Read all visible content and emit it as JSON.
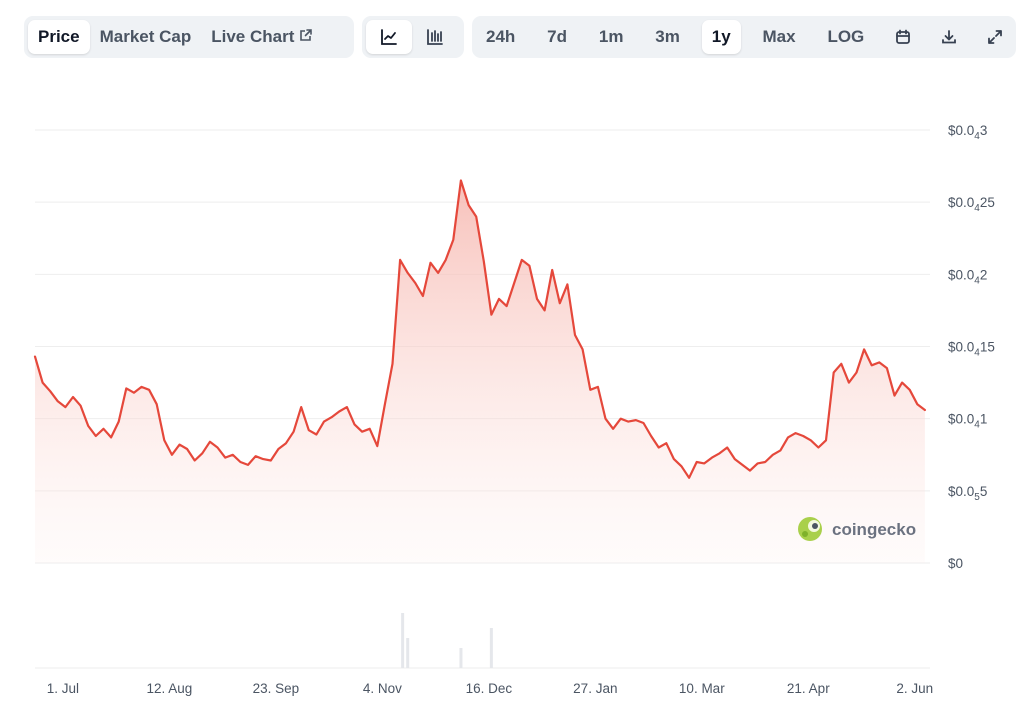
{
  "tabs": [
    {
      "label": "Price",
      "active": true
    },
    {
      "label": "Market Cap",
      "active": false
    },
    {
      "label": "Live Chart",
      "active": false
    }
  ],
  "chart_types": [
    {
      "icon": "line-chart-icon",
      "active": true
    },
    {
      "icon": "candlestick-chart-icon",
      "active": false
    }
  ],
  "ranges": [
    {
      "label": "24h",
      "active": false
    },
    {
      "label": "7d",
      "active": false
    },
    {
      "label": "1m",
      "active": false
    },
    {
      "label": "3m",
      "active": false
    },
    {
      "label": "1y",
      "active": true
    },
    {
      "label": "Max",
      "active": false
    },
    {
      "label": "LOG",
      "active": false
    }
  ],
  "tools": [
    "calendar-icon",
    "download-icon",
    "expand-icon"
  ],
  "watermark": "coingecko",
  "colors": {
    "line": "#e5483b",
    "fill_top": "#f6b6ae",
    "grid": "#eeeeee",
    "accent_bg": "#eff2f5"
  },
  "chart_data": {
    "type": "area",
    "title": "",
    "xlabel": "",
    "ylabel": "",
    "y_ticks": [
      {
        "value": 3e-05,
        "label_main": "$0.0",
        "label_sub": "4",
        "label_tail": "3"
      },
      {
        "value": 2.5e-05,
        "label_main": "$0.0",
        "label_sub": "4",
        "label_tail": "25"
      },
      {
        "value": 2e-05,
        "label_main": "$0.0",
        "label_sub": "4",
        "label_tail": "2"
      },
      {
        "value": 1.5e-05,
        "label_main": "$0.0",
        "label_sub": "4",
        "label_tail": "15"
      },
      {
        "value": 1e-05,
        "label_main": "$0.0",
        "label_sub": "4",
        "label_tail": "1"
      },
      {
        "value": 5e-06,
        "label_main": "$0.0",
        "label_sub": "5",
        "label_tail": "5"
      },
      {
        "value": 0,
        "label_main": "$0",
        "label_sub": "",
        "label_tail": ""
      }
    ],
    "x_ticks": [
      {
        "date": "2024-07-01",
        "label": "1. Jul"
      },
      {
        "date": "2024-08-12",
        "label": "12. Aug"
      },
      {
        "date": "2024-09-23",
        "label": "23. Sep"
      },
      {
        "date": "2024-11-04",
        "label": "4. Nov"
      },
      {
        "date": "2024-12-16",
        "label": "16. Dec"
      },
      {
        "date": "2025-01-27",
        "label": "27. Jan"
      },
      {
        "date": "2025-03-10",
        "label": "10. Mar"
      },
      {
        "date": "2025-04-21",
        "label": "21. Apr"
      },
      {
        "date": "2025-06-02",
        "label": "2. Jun"
      }
    ],
    "ylim": [
      0,
      3e-05
    ],
    "xlim": [
      "2024-06-20",
      "2025-06-08"
    ],
    "grid": true,
    "series": [
      {
        "x": [
          "2024-06-20",
          "2024-06-23",
          "2024-06-26",
          "2024-06-29",
          "2024-07-02",
          "2024-07-05",
          "2024-07-08",
          "2024-07-11",
          "2024-07-14",
          "2024-07-17",
          "2024-07-20",
          "2024-07-23",
          "2024-07-26",
          "2024-07-29",
          "2024-08-01",
          "2024-08-04",
          "2024-08-07",
          "2024-08-10",
          "2024-08-13",
          "2024-08-16",
          "2024-08-19",
          "2024-08-22",
          "2024-08-25",
          "2024-08-28",
          "2024-08-31",
          "2024-09-03",
          "2024-09-06",
          "2024-09-09",
          "2024-09-12",
          "2024-09-15",
          "2024-09-18",
          "2024-09-21",
          "2024-09-24",
          "2024-09-27",
          "2024-09-30",
          "2024-10-03",
          "2024-10-06",
          "2024-10-09",
          "2024-10-12",
          "2024-10-15",
          "2024-10-18",
          "2024-10-21",
          "2024-10-24",
          "2024-10-27",
          "2024-10-30",
          "2024-11-02",
          "2024-11-05",
          "2024-11-08",
          "2024-11-11",
          "2024-11-14",
          "2024-11-17",
          "2024-11-20",
          "2024-11-23",
          "2024-11-26",
          "2024-11-29",
          "2024-12-02",
          "2024-12-05",
          "2024-12-08",
          "2024-12-11",
          "2024-12-14",
          "2024-12-17",
          "2024-12-20",
          "2024-12-23",
          "2024-12-26",
          "2024-12-29",
          "2025-01-01",
          "2025-01-04",
          "2025-01-07",
          "2025-01-10",
          "2025-01-13",
          "2025-01-16",
          "2025-01-19",
          "2025-01-22",
          "2025-01-25",
          "2025-01-28",
          "2025-01-31",
          "2025-02-03",
          "2025-02-06",
          "2025-02-09",
          "2025-02-12",
          "2025-02-15",
          "2025-02-18",
          "2025-02-21",
          "2025-02-24",
          "2025-02-27",
          "2025-03-02",
          "2025-03-05",
          "2025-03-08",
          "2025-03-11",
          "2025-03-14",
          "2025-03-17",
          "2025-03-20",
          "2025-03-23",
          "2025-03-26",
          "2025-03-29",
          "2025-04-01",
          "2025-04-04",
          "2025-04-07",
          "2025-04-10",
          "2025-04-13",
          "2025-04-16",
          "2025-04-19",
          "2025-04-22",
          "2025-04-25",
          "2025-04-28",
          "2025-05-01",
          "2025-05-04",
          "2025-05-07",
          "2025-05-10",
          "2025-05-13",
          "2025-05-16",
          "2025-05-19",
          "2025-05-22",
          "2025-05-25",
          "2025-05-28",
          "2025-05-31",
          "2025-06-03",
          "2025-06-06"
        ],
        "y": [
          1.43e-05,
          1.25e-05,
          1.19e-05,
          1.12e-05,
          1.08e-05,
          1.15e-05,
          1.09e-05,
          9.5e-06,
          8.8e-06,
          9.3e-06,
          8.7e-06,
          9.8e-06,
          1.21e-05,
          1.18e-05,
          1.22e-05,
          1.2e-05,
          1.1e-05,
          8.5e-06,
          7.5e-06,
          8.2e-06,
          7.9e-06,
          7.1e-06,
          7.6e-06,
          8.4e-06,
          8e-06,
          7.3e-06,
          7.5e-06,
          7e-06,
          6.8e-06,
          7.4e-06,
          7.2e-06,
          7.1e-06,
          7.9e-06,
          8.3e-06,
          9.1e-06,
          1.08e-05,
          9.2e-06,
          8.9e-06,
          9.8e-06,
          1.01e-05,
          1.05e-05,
          1.08e-05,
          9.6e-06,
          9.1e-06,
          9.3e-06,
          8.1e-06,
          1.1e-05,
          1.38e-05,
          2.1e-05,
          2.01e-05,
          1.94e-05,
          1.85e-05,
          2.08e-05,
          2.01e-05,
          2.1e-05,
          2.24e-05,
          2.65e-05,
          2.48e-05,
          2.4e-05,
          2.09e-05,
          1.72e-05,
          1.83e-05,
          1.78e-05,
          1.94e-05,
          2.1e-05,
          2.06e-05,
          1.83e-05,
          1.75e-05,
          2.03e-05,
          1.8e-05,
          1.93e-05,
          1.58e-05,
          1.48e-05,
          1.2e-05,
          1.22e-05,
          1e-05,
          9.3e-06,
          1e-05,
          9.8e-06,
          9.9e-06,
          9.7e-06,
          8.8e-06,
          8e-06,
          8.3e-06,
          7.2e-06,
          6.7e-06,
          5.9e-06,
          7e-06,
          6.9e-06,
          7.3e-06,
          7.6e-06,
          8e-06,
          7.2e-06,
          6.8e-06,
          6.4e-06,
          6.9e-06,
          7e-06,
          7.5e-06,
          7.8e-06,
          8.7e-06,
          9e-06,
          8.8e-06,
          8.5e-06,
          8e-06,
          8.5e-06,
          1.32e-05,
          1.38e-05,
          1.25e-05,
          1.32e-05,
          1.48e-05,
          1.37e-05,
          1.39e-05,
          1.35e-05,
          1.16e-05,
          1.25e-05,
          1.2e-05,
          1.1e-05,
          1.06e-05
        ]
      }
    ],
    "volume": [
      {
        "x": "2024-11-12",
        "value": 0.55
      },
      {
        "x": "2024-11-14",
        "value": 0.3
      },
      {
        "x": "2024-12-17",
        "value": 0.4
      },
      {
        "x": "2024-12-05",
        "value": 0.2
      }
    ]
  }
}
